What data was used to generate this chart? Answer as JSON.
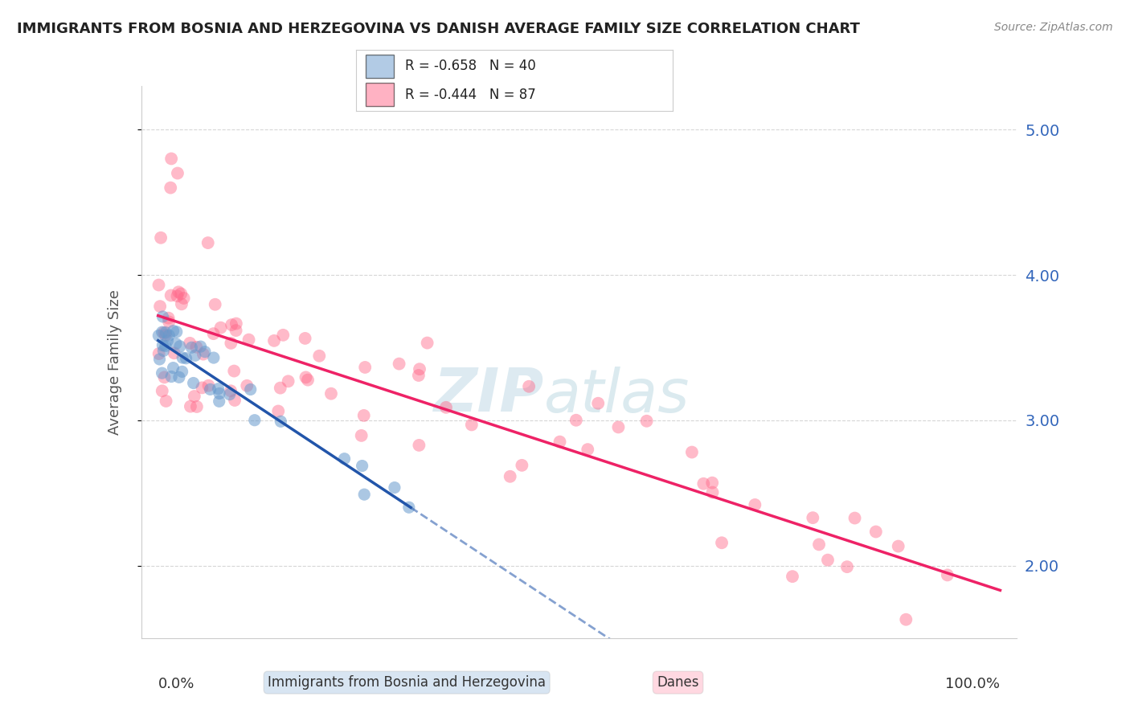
{
  "title": "IMMIGRANTS FROM BOSNIA AND HERZEGOVINA VS DANISH AVERAGE FAMILY SIZE CORRELATION CHART",
  "source": "Source: ZipAtlas.com",
  "ylabel": "Average Family Size",
  "yticks_right": [
    2.0,
    3.0,
    4.0,
    5.0
  ],
  "blue_label": "Immigrants from Bosnia and Herzegovina",
  "pink_label": "Danes",
  "blue_R": -0.658,
  "blue_N": 40,
  "pink_R": -0.444,
  "pink_N": 87,
  "blue_color": "#6699CC",
  "pink_color": "#FF6688",
  "watermark_zip": "ZIP",
  "watermark_atlas": "atlas",
  "xlim": [
    -2,
    102
  ],
  "ylim": [
    1.5,
    5.3
  ]
}
